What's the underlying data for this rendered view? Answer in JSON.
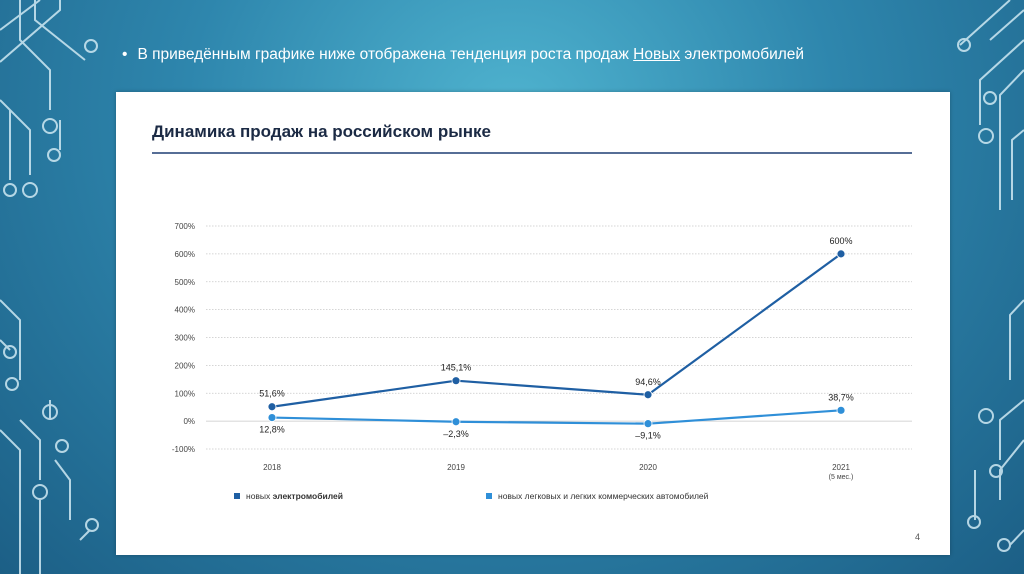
{
  "slide": {
    "bullet_symbol": "•",
    "bullet_text_before": "В приведённым графике ниже отображена тенденция роста продаж ",
    "bullet_text_underlined": "Новых",
    "bullet_text_after": " электромобилей",
    "page_number": "4"
  },
  "colors": {
    "background": "#2e86ad",
    "series_ev": "#1f5fa3",
    "series_all": "#2f8fd8",
    "title": "#1b2a44"
  },
  "chart_data": {
    "type": "line",
    "title": "Динамика продаж на российском рынке",
    "xlabel": "",
    "ylabel": "",
    "categories": [
      "2018",
      "2019",
      "2020",
      "2021"
    ],
    "category_sublabels": [
      "",
      "",
      "",
      "(5 мес.)"
    ],
    "ylim": [
      -100,
      700
    ],
    "y_ticks": [
      700,
      600,
      500,
      400,
      300,
      200,
      100,
      0,
      -100
    ],
    "y_tick_labels": [
      "700%",
      "600%",
      "500%",
      "400%",
      "300%",
      "200%",
      "100%",
      "0%",
      "-100%"
    ],
    "grid": true,
    "legend_position": "bottom",
    "series": [
      {
        "name": "новых электромобилей",
        "name_plain": "новых ",
        "name_bold": "электромобилей",
        "values": [
          51.6,
          145.1,
          94.6,
          600
        ],
        "labels": [
          "51,6%",
          "145,1%",
          "94,6%",
          "600%"
        ],
        "label_side": [
          "above",
          "above",
          "above",
          "above"
        ]
      },
      {
        "name": "новых легковых и легких коммерческих автомобилей",
        "name_plain": "новых легковых и легких коммерческих автомобилей",
        "name_bold": "",
        "values": [
          12.8,
          -2.3,
          -9.1,
          38.7
        ],
        "labels": [
          "12,8%",
          "–2,3%",
          "–9,1%",
          "38,7%"
        ],
        "label_side": [
          "below",
          "below",
          "below",
          "above"
        ]
      }
    ]
  }
}
